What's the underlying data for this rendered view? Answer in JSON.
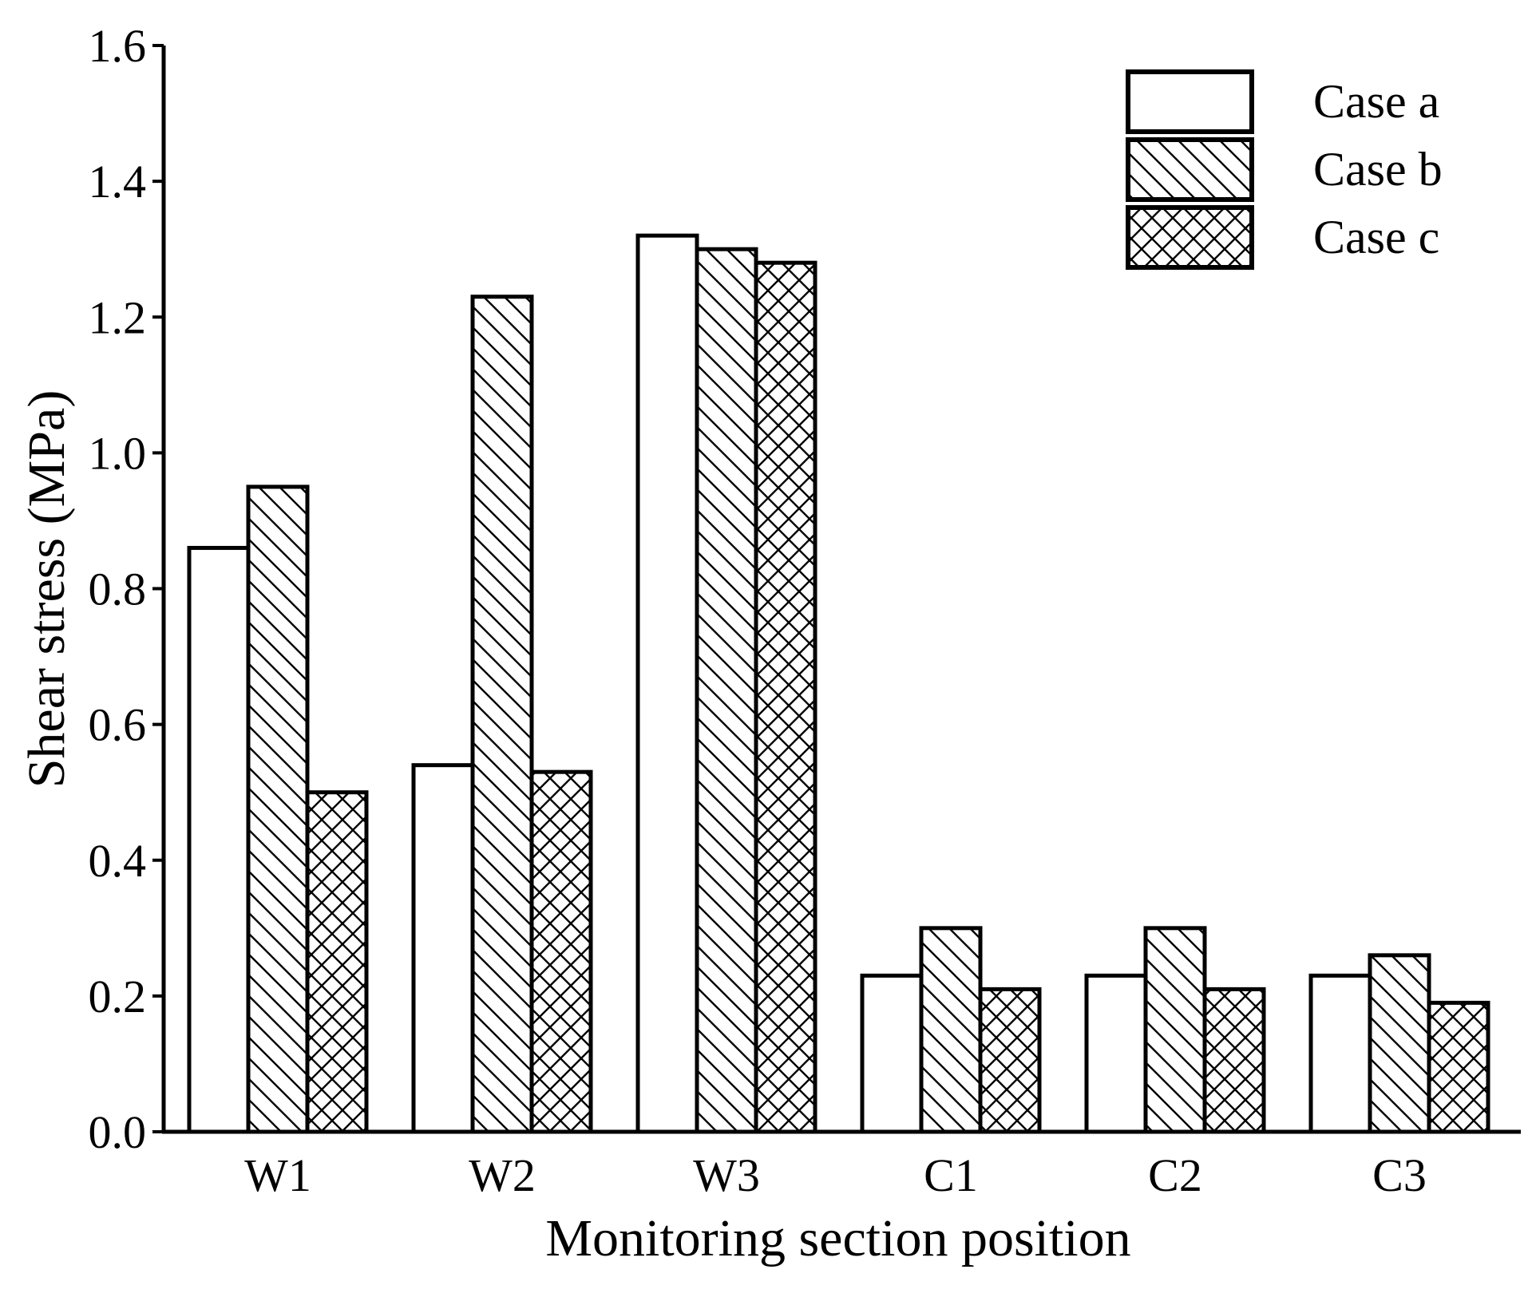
{
  "chart_data": {
    "type": "bar",
    "title": "",
    "xlabel": "Monitoring section position",
    "ylabel": "Shear stress (MPa)",
    "categories": [
      "W1",
      "W2",
      "W3",
      "C1",
      "C2",
      "C3"
    ],
    "ylim": [
      0,
      1.6
    ],
    "yticks": [
      0.0,
      0.2,
      0.4,
      0.6,
      0.8,
      1.0,
      1.2,
      1.4,
      1.6
    ],
    "ytick_labels": [
      "0.0",
      "0.2",
      "0.4",
      "0.6",
      "0.8",
      "1.0",
      "1.2",
      "1.4",
      "1.6"
    ],
    "grid": false,
    "legend_position": "top-right",
    "series": [
      {
        "name": "Case a",
        "pattern": "none",
        "values": [
          0.86,
          0.54,
          1.32,
          0.23,
          0.23,
          0.23
        ]
      },
      {
        "name": "Case b",
        "pattern": "diagonal",
        "values": [
          0.95,
          1.23,
          1.3,
          0.3,
          0.3,
          0.26
        ]
      },
      {
        "name": "Case c",
        "pattern": "crosshatch",
        "values": [
          0.5,
          0.53,
          1.28,
          0.21,
          0.21,
          0.19
        ]
      }
    ],
    "colors": {
      "fill": "#ffffff",
      "stroke": "#000000"
    }
  }
}
